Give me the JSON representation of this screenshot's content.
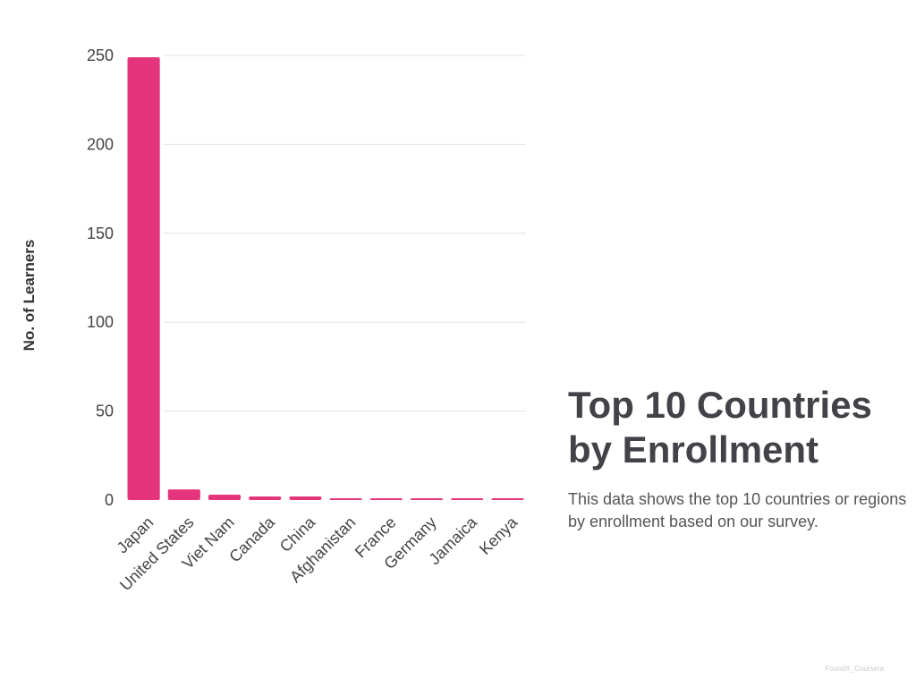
{
  "chart_data": {
    "type": "bar",
    "title": "Top 10 Countries by Enrollment",
    "subtitle": "This data shows the top 10 countries or regions by enrollment based on our survey.",
    "xlabel": "",
    "ylabel": "No. of Learners",
    "categories": [
      "Japan",
      "United States",
      "Viet Nam",
      "Canada",
      "China",
      "Afghanistan",
      "France",
      "Germany",
      "Jamaica",
      "Kenya"
    ],
    "values": [
      249,
      6,
      3,
      2,
      2,
      1,
      1,
      1,
      1,
      1
    ],
    "ylim": [
      0,
      250
    ],
    "yticks": [
      0,
      50,
      100,
      150,
      200,
      250
    ],
    "grid": true,
    "legend": "none",
    "bar_color": "#e3347c"
  },
  "footer": {
    "watermark": "FoundX_Coursera"
  }
}
